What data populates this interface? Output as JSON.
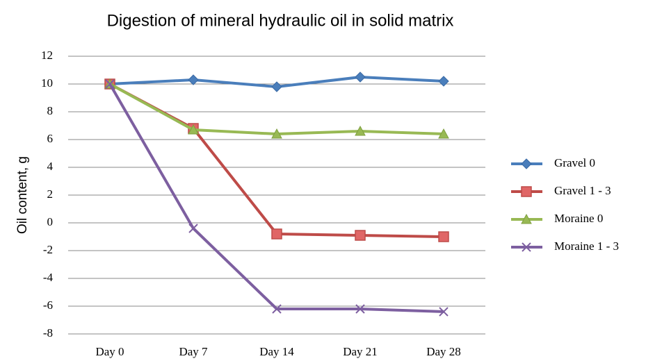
{
  "chart_data": {
    "type": "line",
    "title": "Digestion of mineral hydraulic oil in solid matrix",
    "y_label": "Oil content, g",
    "categories": [
      "Day 0",
      "Day 7",
      "Day 14",
      "Day 21",
      "Day 28"
    ],
    "series": [
      {
        "name": "Gravel 0",
        "color": "#4a7ebb",
        "marker": "diamond",
        "values": [
          10,
          10.3,
          9.8,
          10.5,
          10.2
        ]
      },
      {
        "name": "Gravel 1 - 3",
        "color": "#be4b48",
        "marker": "square",
        "values": [
          10,
          6.8,
          -0.8,
          -0.9,
          -1.0
        ]
      },
      {
        "name": "Moraine 0",
        "color": "#98b954",
        "marker": "triangle",
        "values": [
          10,
          6.7,
          6.4,
          6.6,
          6.4
        ]
      },
      {
        "name": "Moraine 1 - 3",
        "color": "#7d5fa0",
        "marker": "x",
        "values": [
          10,
          -0.4,
          -6.2,
          -6.2,
          -6.4
        ]
      }
    ],
    "ylim": [
      -8,
      12
    ],
    "yticks": [
      -8,
      -6,
      -4,
      -2,
      0,
      2,
      4,
      6,
      8,
      10,
      12
    ],
    "grid": true,
    "legend": "right"
  }
}
